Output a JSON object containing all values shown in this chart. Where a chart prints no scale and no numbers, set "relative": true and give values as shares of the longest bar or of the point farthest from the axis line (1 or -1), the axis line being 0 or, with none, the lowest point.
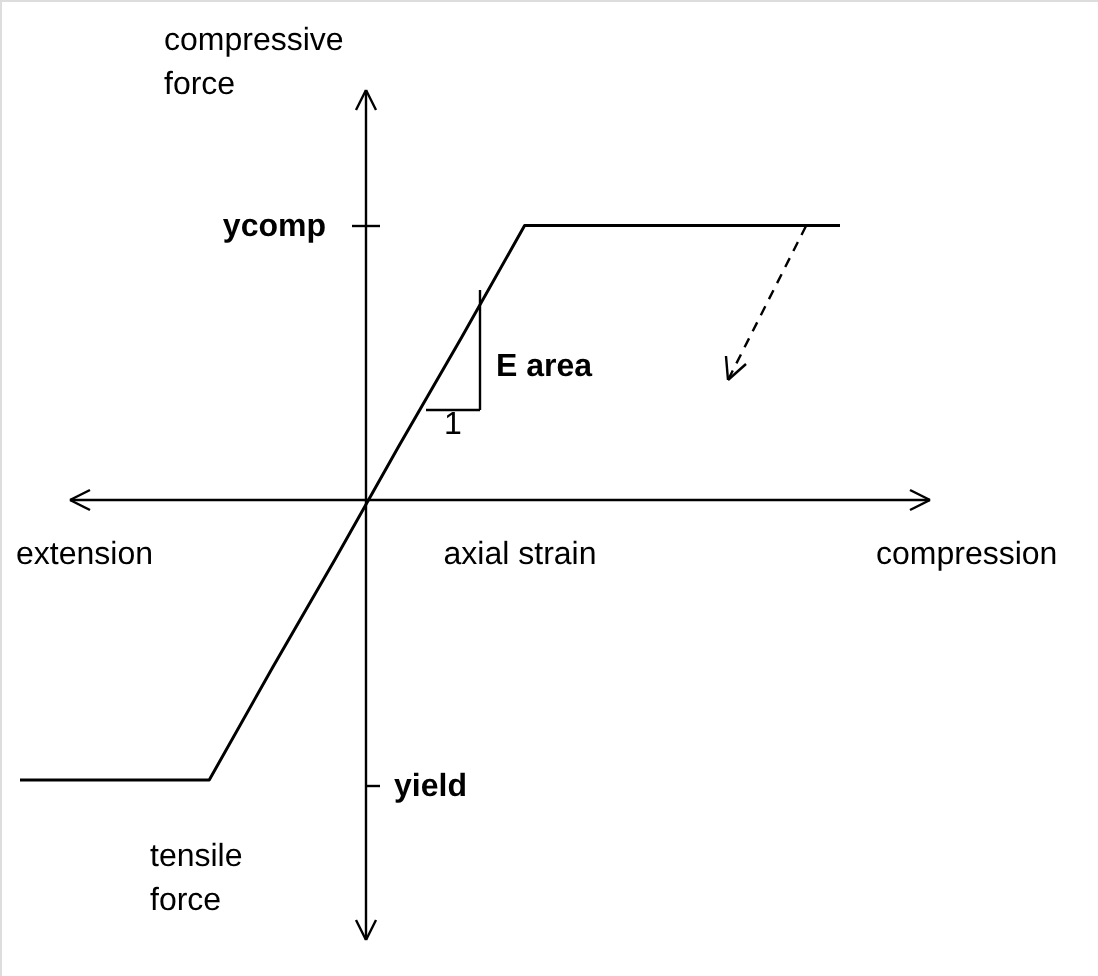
{
  "chart_data": {
    "type": "line",
    "relative": true,
    "xlabel": "axial strain",
    "categories": [
      null,
      null,
      null,
      null,
      null,
      null,
      null,
      null,
      null,
      null,
      null,
      null,
      null,
      null
    ],
    "series": [
      {
        "color": "#000000",
        "values": [
          -1,
          -1,
          -1,
          -1,
          -0.6,
          -0.21,
          0.19,
          0.58,
          0.98,
          0.98,
          0.98,
          0.98,
          0.98,
          0.98
        ]
      }
    ],
    "marker": "none",
    "line_style": "solid",
    "annotations": [
      "compressive force",
      "tensile force",
      "extension",
      "compression",
      "ycomp",
      "yield",
      "E area",
      "1"
    ]
  }
}
